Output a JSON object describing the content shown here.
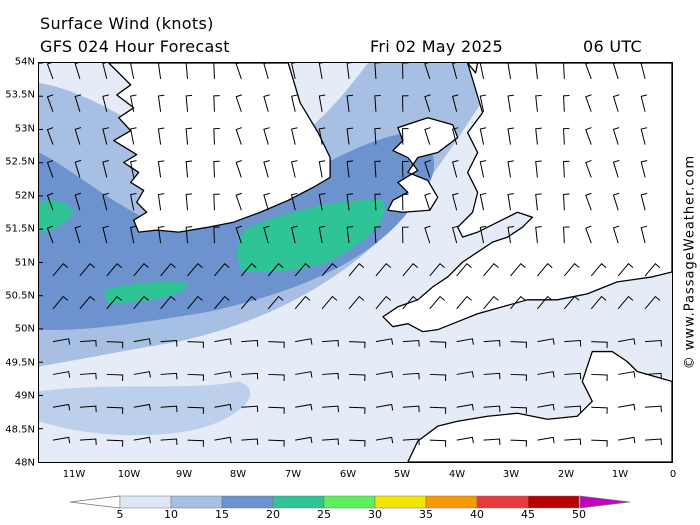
{
  "title": "Surface Wind (knots)",
  "forecast": "GFS 024 Hour Forecast",
  "valid_date": "Fri 02 May 2025",
  "valid_time": "06 UTC",
  "credit": "© www.PassageWeather.com",
  "lat_labels": [
    "54N",
    "53.5N",
    "53N",
    "52.5N",
    "52N",
    "51.5N",
    "51N",
    "50.5N",
    "50N",
    "49.5N",
    "49N",
    "48.5N",
    "48N"
  ],
  "lon_labels": [
    "11W",
    "10W",
    "9W",
    "8W",
    "7W",
    "6W",
    "5W",
    "4W",
    "3W",
    "2W",
    "1W",
    "0"
  ],
  "legend": {
    "labels": [
      "5",
      "10",
      "15",
      "20",
      "25",
      "30",
      "35",
      "40",
      "45",
      "50"
    ],
    "colors": [
      "#ffffff",
      "#dfe7f5",
      "#a6bfe2",
      "#6d93cf",
      "#2fc496",
      "#5df05d",
      "#f2e600",
      "#f59a00",
      "#e83a3a",
      "#b80000",
      "#c400c4"
    ]
  },
  "land_color": "#ffffff",
  "coast_color": "#000000"
}
